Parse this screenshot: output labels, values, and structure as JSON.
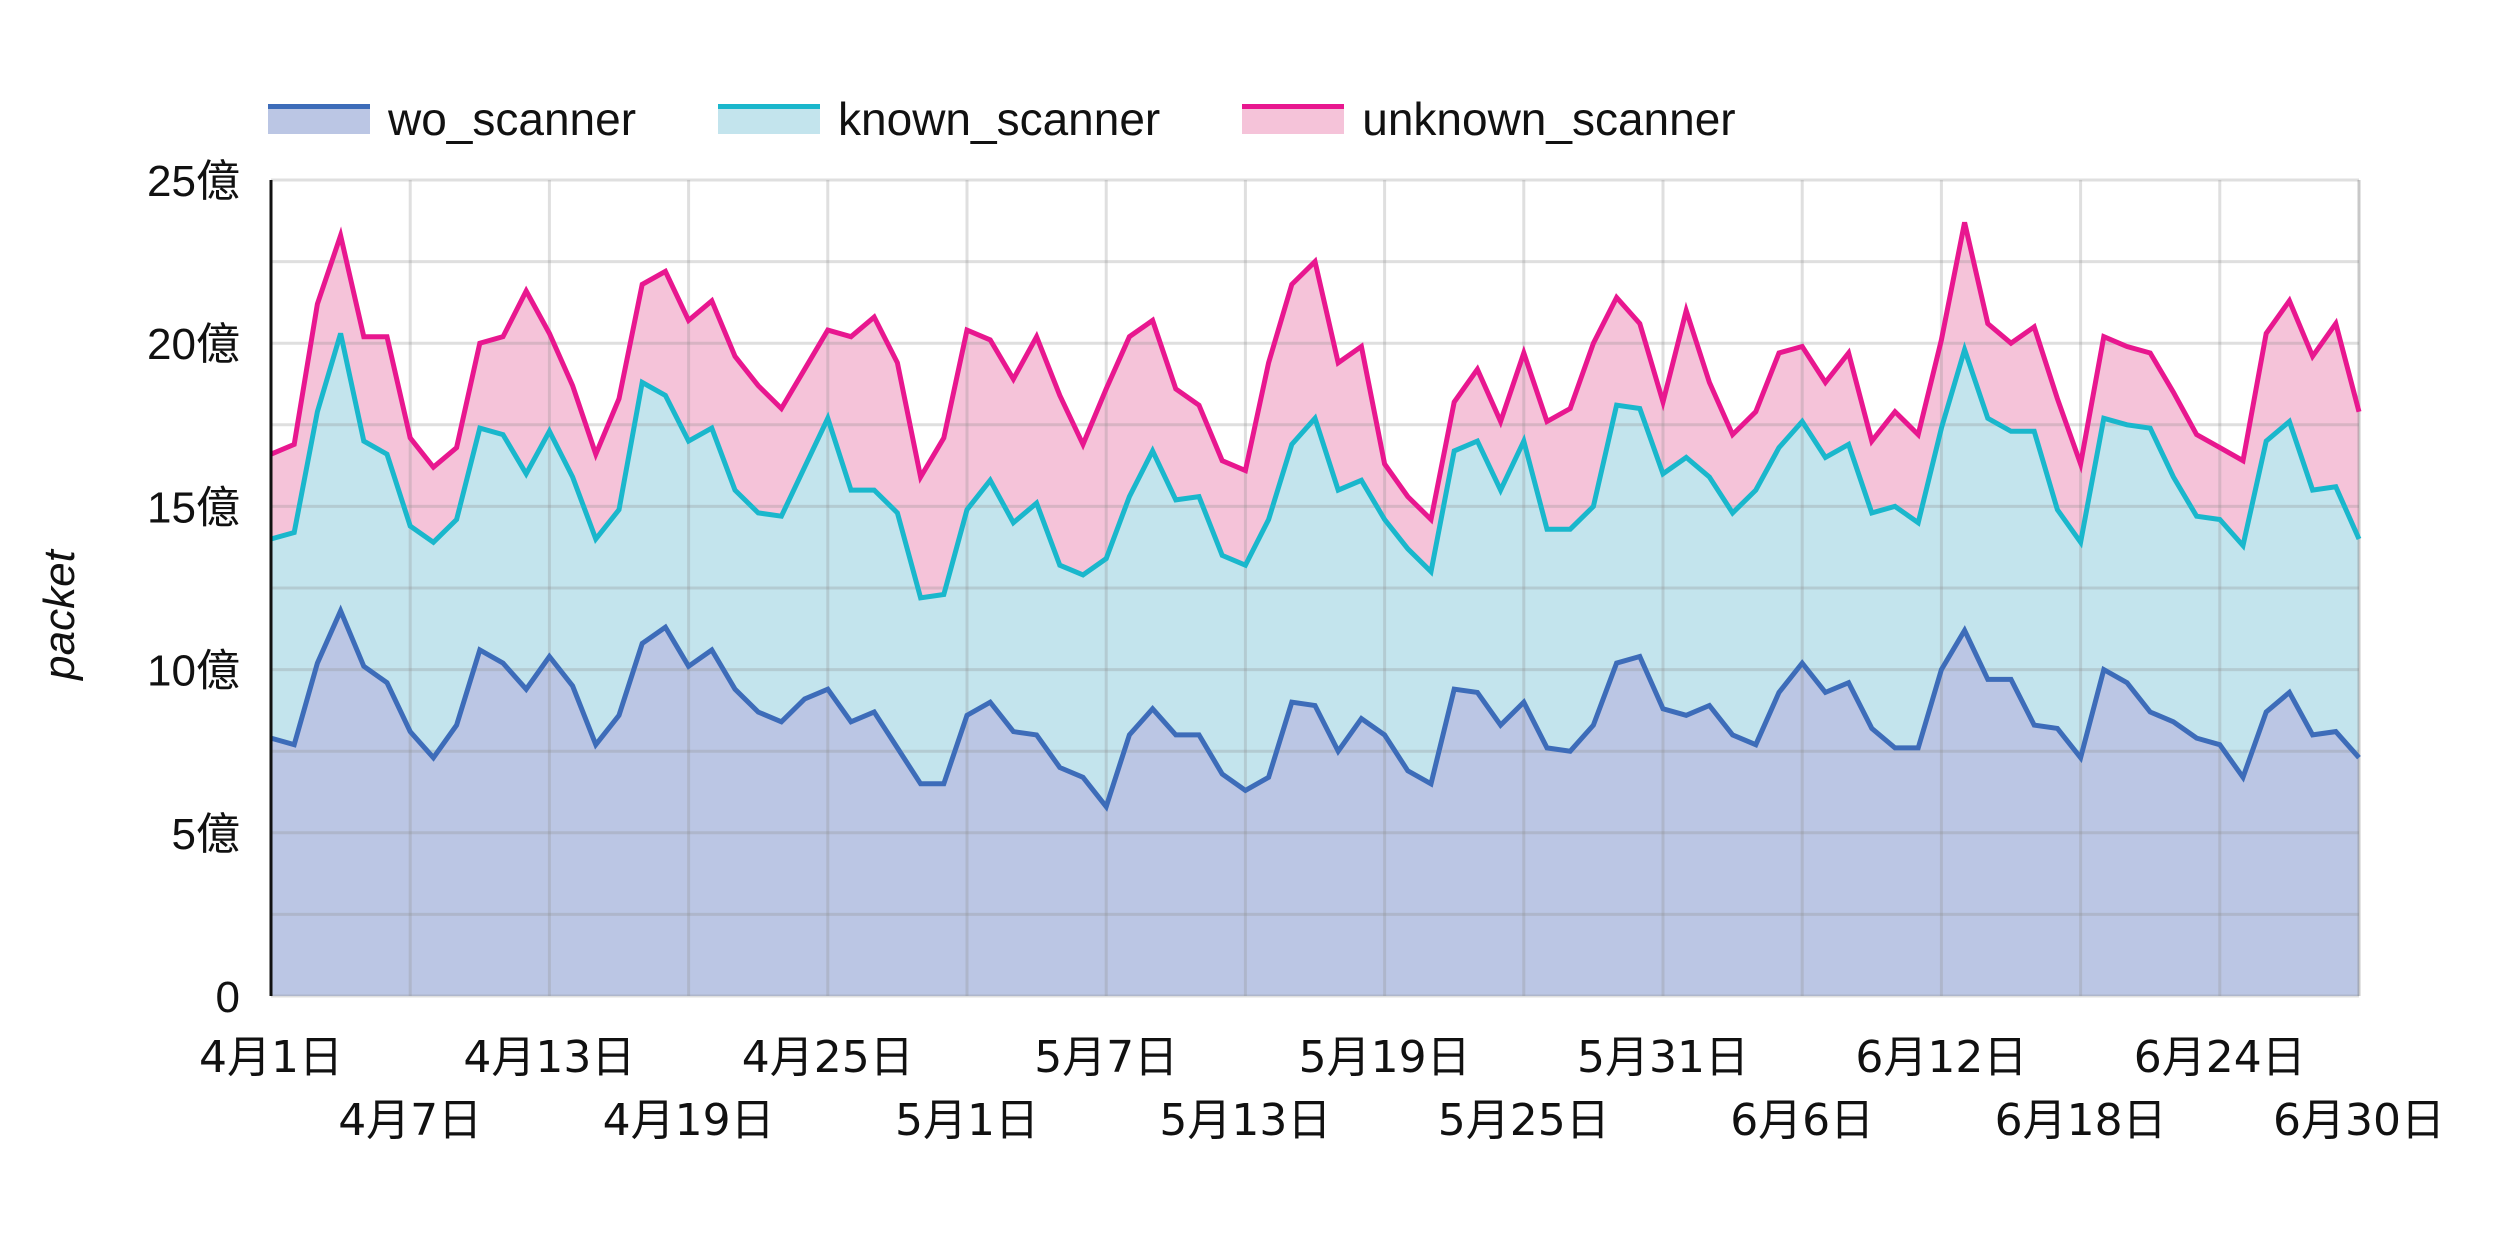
{
  "chart_data": {
    "type": "area",
    "stacked": true,
    "title": "",
    "xlabel": "",
    "ylabel": "packet",
    "ylim": [
      0,
      2500000000
    ],
    "y_unit_label": "億",
    "yticks": [
      "0",
      "5億",
      "10億",
      "15億",
      "20億",
      "25億"
    ],
    "ytick_values": [
      0,
      5,
      10,
      15,
      20,
      25
    ],
    "grid": true,
    "legend_position": "top",
    "x_start": "4月1日",
    "x_end": "6月30日",
    "xtick_labels": [
      "4月1日",
      "4月7日",
      "4月13日",
      "4月19日",
      "4月25日",
      "5月1日",
      "5月7日",
      "5月13日",
      "5月19日",
      "5月25日",
      "5月31日",
      "6月6日",
      "6月12日",
      "6月18日",
      "6月24日",
      "6月30日"
    ],
    "xtick_step_days": 6,
    "values_unit": "億 packets (stacked component values)",
    "series": [
      {
        "name": "wo_scanner",
        "line_color": "#3d6cb9",
        "fill_color": "#bbc6e4",
        "values": [
          7.9,
          7.7,
          10.2,
          11.8,
          10.1,
          9.6,
          8.1,
          7.3,
          8.3,
          10.6,
          10.2,
          9.4,
          10.4,
          9.5,
          7.7,
          8.6,
          10.8,
          11.3,
          10.1,
          10.6,
          9.4,
          8.7,
          8.4,
          9.1,
          9.4,
          8.4,
          8.7,
          7.6,
          6.5,
          6.5,
          8.6,
          9.0,
          8.1,
          8.0,
          7.0,
          6.7,
          5.8,
          8.0,
          8.8,
          8.0,
          8.0,
          6.8,
          6.3,
          6.7,
          9.0,
          8.9,
          7.5,
          8.5,
          8.0,
          6.9,
          6.5,
          9.4,
          9.3,
          8.3,
          9.0,
          7.6,
          7.5,
          8.3,
          10.2,
          10.4,
          8.8,
          8.6,
          8.9,
          8.0,
          7.7,
          9.3,
          10.2,
          9.3,
          9.6,
          8.2,
          7.6,
          7.6,
          10.0,
          11.2,
          9.7,
          9.7,
          8.3,
          8.2,
          7.3,
          10.0,
          9.6,
          8.7,
          8.4,
          7.9,
          7.7,
          6.7,
          8.7,
          9.3,
          8.0,
          8.1,
          7.3
        ]
      },
      {
        "name": "known_scanner",
        "line_color": "#1ab7cc",
        "fill_color": "#c3e4ed",
        "values": [
          6.1,
          6.5,
          7.7,
          8.5,
          6.9,
          7.0,
          6.3,
          6.6,
          6.3,
          6.8,
          7.0,
          6.6,
          6.9,
          6.4,
          6.3,
          6.3,
          8.0,
          7.1,
          6.9,
          6.8,
          6.1,
          6.1,
          6.3,
          7.1,
          8.3,
          7.1,
          6.8,
          7.2,
          5.7,
          5.8,
          6.3,
          6.8,
          6.4,
          7.1,
          6.2,
          6.2,
          7.6,
          7.3,
          7.9,
          7.2,
          7.3,
          6.7,
          6.9,
          7.9,
          7.9,
          8.8,
          8.0,
          7.3,
          6.6,
          6.8,
          6.5,
          7.3,
          7.7,
          7.2,
          8.0,
          6.7,
          6.8,
          6.7,
          7.9,
          7.6,
          7.2,
          7.9,
          7.0,
          6.8,
          7.8,
          7.5,
          7.4,
          7.2,
          7.3,
          6.6,
          7.4,
          6.9,
          7.4,
          8.6,
          8.0,
          7.6,
          9.0,
          6.7,
          6.6,
          7.7,
          7.9,
          8.7,
          7.5,
          6.8,
          6.9,
          7.1,
          8.3,
          8.3,
          7.5,
          7.5,
          6.7
        ]
      },
      {
        "name": "unknown_scanner",
        "line_color": "#e8178f",
        "fill_color": "#f5c3d9",
        "values": [
          2.6,
          2.7,
          3.3,
          3.0,
          3.2,
          3.6,
          2.7,
          2.3,
          2.2,
          2.6,
          3.0,
          5.6,
          3.0,
          2.8,
          2.6,
          3.4,
          3.0,
          3.8,
          3.7,
          3.9,
          4.1,
          3.9,
          3.3,
          3.0,
          2.7,
          4.7,
          5.3,
          4.6,
          3.7,
          4.8,
          5.5,
          4.3,
          4.4,
          5.1,
          5.2,
          4.0,
          5.2,
          4.9,
          4.0,
          3.4,
          2.8,
          2.9,
          2.9,
          4.8,
          4.9,
          4.8,
          3.9,
          4.1,
          1.7,
          1.6,
          1.6,
          1.5,
          2.2,
          2.1,
          2.7,
          3.3,
          3.7,
          5.0,
          3.3,
          2.6,
          2.2,
          4.5,
          2.9,
          2.4,
          2.4,
          2.9,
          2.3,
          2.3,
          2.8,
          2.2,
          2.9,
          2.7,
          2.7,
          3.9,
          2.9,
          2.7,
          3.2,
          3.4,
          2.4,
          2.5,
          2.4,
          2.3,
          2.6,
          2.5,
          2.2,
          2.6,
          3.3,
          3.7,
          4.1,
          5.0,
          3.9
        ]
      }
    ],
    "cumulative_tops": {
      "wo_scanner": [
        7.9,
        7.7,
        10.2,
        11.8,
        10.1,
        9.6,
        8.1,
        7.3,
        8.3,
        10.6,
        10.2,
        9.4,
        10.4,
        9.5,
        7.7,
        8.6,
        10.8,
        11.3,
        10.1,
        10.6,
        9.4,
        8.7,
        8.4,
        9.1,
        9.4,
        8.4,
        8.7,
        7.6,
        6.5,
        6.5,
        8.6,
        9.0,
        8.1,
        8.0,
        7.0,
        6.7,
        5.8,
        8.0,
        8.8,
        8.0,
        8.0,
        6.8,
        6.3,
        6.7,
        9.0,
        8.9,
        7.5,
        8.5,
        8.0,
        6.9,
        6.5,
        9.4,
        9.3,
        8.3,
        9.0,
        7.6,
        7.5,
        8.3,
        10.2,
        10.4,
        8.8,
        8.6,
        8.9,
        8.0,
        7.7,
        9.3,
        10.2,
        9.3,
        9.6,
        8.2,
        7.6,
        7.6,
        10.0,
        11.2,
        9.7,
        9.7,
        8.3,
        8.2,
        7.3,
        10.0,
        9.6,
        8.7,
        8.4,
        7.9,
        7.7,
        6.7,
        8.7,
        9.3,
        8.0,
        8.1,
        7.3
      ],
      "known_scanner": [
        14.0,
        14.2,
        17.9,
        20.3,
        17.0,
        16.6,
        14.4,
        13.9,
        14.6,
        17.4,
        17.2,
        16.0,
        17.3,
        15.9,
        14.0,
        14.9,
        18.8,
        18.4,
        17.0,
        17.4,
        15.5,
        14.8,
        14.7,
        16.2,
        17.7,
        15.5,
        15.5,
        14.8,
        12.2,
        12.3,
        14.9,
        15.8,
        14.5,
        15.1,
        13.2,
        12.9,
        13.4,
        15.3,
        16.7,
        15.2,
        15.3,
        13.5,
        13.2,
        14.6,
        16.9,
        17.7,
        15.5,
        15.8,
        14.6,
        13.7,
        13.0,
        16.7,
        17.0,
        15.5,
        17.0,
        14.3,
        14.3,
        15.0,
        18.1,
        18.0,
        16.0,
        16.5,
        15.9,
        14.8,
        15.5,
        16.8,
        17.6,
        16.5,
        16.9,
        14.8,
        15.0,
        14.5,
        17.4,
        19.8,
        17.7,
        17.3,
        17.3,
        14.9,
        13.9,
        17.7,
        17.5,
        17.4,
        15.9,
        14.7,
        14.6,
        13.8,
        17.0,
        17.6,
        15.5,
        15.6,
        14.0
      ],
      "unknown_scanner": [
        16.6,
        16.9,
        21.2,
        23.3,
        20.2,
        20.2,
        17.1,
        16.2,
        16.8,
        20.0,
        20.2,
        21.6,
        20.3,
        18.7,
        16.6,
        18.3,
        21.8,
        22.2,
        20.7,
        21.3,
        19.6,
        18.7,
        18.0,
        19.2,
        20.4,
        20.2,
        20.8,
        19.4,
        15.9,
        17.1,
        20.4,
        20.1,
        18.9,
        20.2,
        18.4,
        16.9,
        18.6,
        20.2,
        20.7,
        18.6,
        18.1,
        16.4,
        16.1,
        19.4,
        21.8,
        22.5,
        19.4,
        19.9,
        16.3,
        15.3,
        14.6,
        18.2,
        19.2,
        17.6,
        19.7,
        17.6,
        18.0,
        20.0,
        21.4,
        20.6,
        18.2,
        21.0,
        18.8,
        17.2,
        17.9,
        19.7,
        19.9,
        18.8,
        19.7,
        17.0,
        17.9,
        17.2,
        20.1,
        23.7,
        20.6,
        20.0,
        20.5,
        18.3,
        16.3,
        20.2,
        19.9,
        19.7,
        18.5,
        17.2,
        16.8,
        16.4,
        20.3,
        21.3,
        19.6,
        20.6,
        17.9
      ]
    }
  },
  "legend": [
    {
      "label": "wo_scanner",
      "line_color": "#3d6cb9",
      "fill_color": "#bbc6e4"
    },
    {
      "label": "known_scanner",
      "line_color": "#1ab7cc",
      "fill_color": "#c3e4ed"
    },
    {
      "label": "unknown_scanner",
      "line_color": "#e8178f",
      "fill_color": "#f5c3d9"
    }
  ],
  "axis": {
    "ylabel": "packet"
  }
}
